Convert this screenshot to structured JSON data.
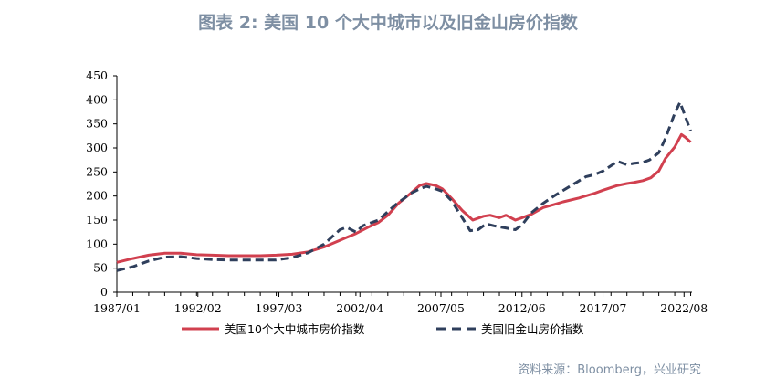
{
  "title": "图表 2:  美国 10 个大中城市以及旧金山房价指数",
  "source": "资料来源：Bloomberg，兴业研究",
  "colors": {
    "series1": "#d1404f",
    "series2": "#2f3f5c",
    "title": "#7e8fa3"
  },
  "chart_data": {
    "type": "line",
    "title": "图表 2:  美国 10 个大中城市以及旧金山房价指数",
    "xlabel": "",
    "ylabel": "",
    "ylim": [
      0,
      450
    ],
    "yticks": [
      "0",
      "50",
      "100",
      "150",
      "200",
      "250",
      "300",
      "350",
      "400",
      "450"
    ],
    "xticks": [
      "1987/01",
      "1992/02",
      "1997/03",
      "2002/04",
      "2007/05",
      "2012/06",
      "2017/07",
      "2022/08"
    ],
    "grid": false,
    "legend": "bottom",
    "series": [
      {
        "name": "美国10个大中城市房价指数",
        "style": "solid",
        "points": [
          [
            "1987-01",
            62
          ],
          [
            "1988-01",
            70
          ],
          [
            "1989-01",
            77
          ],
          [
            "1990-01",
            81
          ],
          [
            "1991-01",
            81
          ],
          [
            "1992-01",
            78
          ],
          [
            "1993-01",
            77
          ],
          [
            "1994-01",
            76
          ],
          [
            "1995-01",
            76
          ],
          [
            "1996-01",
            76
          ],
          [
            "1997-01",
            77
          ],
          [
            "1998-01",
            79
          ],
          [
            "1999-01",
            84
          ],
          [
            "2000-01",
            94
          ],
          [
            "2001-01",
            108
          ],
          [
            "2002-01",
            122
          ],
          [
            "2002-10",
            135
          ],
          [
            "2003-06",
            145
          ],
          [
            "2004-01",
            160
          ],
          [
            "2004-09",
            185
          ],
          [
            "2005-06",
            205
          ],
          [
            "2006-01",
            222
          ],
          [
            "2006-06",
            226
          ],
          [
            "2007-01",
            222
          ],
          [
            "2007-06",
            215
          ],
          [
            "2008-01",
            195
          ],
          [
            "2008-09",
            170
          ],
          [
            "2009-05",
            150
          ],
          [
            "2010-01",
            158
          ],
          [
            "2010-06",
            160
          ],
          [
            "2011-01",
            155
          ],
          [
            "2011-06",
            160
          ],
          [
            "2012-01",
            150
          ],
          [
            "2012-06",
            155
          ],
          [
            "2013-01",
            162
          ],
          [
            "2013-10",
            176
          ],
          [
            "2014-06",
            182
          ],
          [
            "2015-01",
            188
          ],
          [
            "2016-01",
            196
          ],
          [
            "2017-01",
            206
          ],
          [
            "2017-07",
            212
          ],
          [
            "2018-06",
            222
          ],
          [
            "2019-01",
            226
          ],
          [
            "2019-06",
            228
          ],
          [
            "2020-01",
            232
          ],
          [
            "2020-07",
            238
          ],
          [
            "2021-01",
            252
          ],
          [
            "2021-06",
            278
          ],
          [
            "2022-01",
            302
          ],
          [
            "2022-06",
            328
          ],
          [
            "2022-09",
            322
          ],
          [
            "2023-01",
            312
          ]
        ]
      },
      {
        "name": "美国旧金山房价指数",
        "style": "dashed",
        "points": [
          [
            "1987-01",
            45
          ],
          [
            "1988-01",
            53
          ],
          [
            "1989-01",
            65
          ],
          [
            "1990-01",
            73
          ],
          [
            "1991-01",
            74
          ],
          [
            "1992-01",
            70
          ],
          [
            "1993-01",
            68
          ],
          [
            "1994-01",
            67
          ],
          [
            "1995-01",
            67
          ],
          [
            "1996-01",
            67
          ],
          [
            "1997-01",
            67
          ],
          [
            "1998-01",
            72
          ],
          [
            "1999-01",
            82
          ],
          [
            "2000-01",
            100
          ],
          [
            "2001-01",
            130
          ],
          [
            "2001-06",
            135
          ],
          [
            "2002-01",
            125
          ],
          [
            "2002-06",
            138
          ],
          [
            "2003-06",
            150
          ],
          [
            "2004-06",
            180
          ],
          [
            "2005-06",
            205
          ],
          [
            "2006-01",
            215
          ],
          [
            "2006-06",
            220
          ],
          [
            "2007-01",
            215
          ],
          [
            "2007-06",
            210
          ],
          [
            "2008-01",
            190
          ],
          [
            "2008-09",
            155
          ],
          [
            "2009-03",
            128
          ],
          [
            "2009-09",
            130
          ],
          [
            "2010-03",
            142
          ],
          [
            "2010-09",
            138
          ],
          [
            "2011-03",
            135
          ],
          [
            "2012-01",
            130
          ],
          [
            "2012-06",
            140
          ],
          [
            "2013-01",
            165
          ],
          [
            "2013-10",
            185
          ],
          [
            "2014-06",
            200
          ],
          [
            "2015-06",
            220
          ],
          [
            "2016-06",
            240
          ],
          [
            "2017-01",
            245
          ],
          [
            "2017-07",
            252
          ],
          [
            "2018-06",
            272
          ],
          [
            "2019-01",
            265
          ],
          [
            "2019-06",
            268
          ],
          [
            "2020-01",
            270
          ],
          [
            "2020-06",
            275
          ],
          [
            "2021-01",
            290
          ],
          [
            "2021-06",
            320
          ],
          [
            "2022-01",
            372
          ],
          [
            "2022-05",
            395
          ],
          [
            "2022-09",
            365
          ],
          [
            "2023-01",
            335
          ]
        ]
      }
    ]
  }
}
